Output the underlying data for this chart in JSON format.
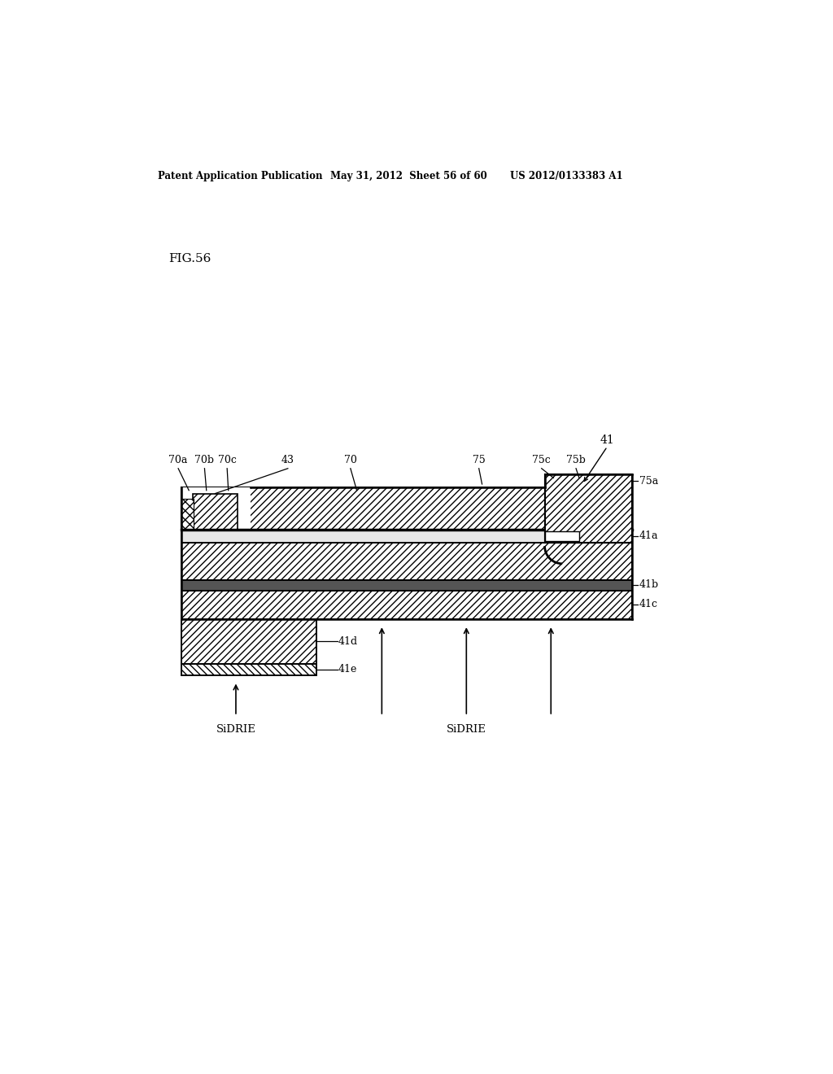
{
  "header_left": "Patent Application Publication",
  "header_mid": "May 31, 2012  Sheet 56 of 60",
  "header_right": "US 2012/0133383 A1",
  "fig_label": "FIG.56",
  "background_color": "#ffffff",
  "label_41": "41",
  "label_41a": "41a",
  "label_41b": "41b",
  "label_41c": "41c",
  "label_41d": "41d",
  "label_41e": "41e",
  "label_43": "43",
  "label_70": "70",
  "label_70a": "70a",
  "label_70b": "70b",
  "label_70c": "70c",
  "label_75": "75",
  "label_75a": "75a",
  "label_75b": "75b",
  "label_75c": "75c",
  "label_sidrie1": "SiDRIE",
  "label_sidrie2": "SiDRIE"
}
